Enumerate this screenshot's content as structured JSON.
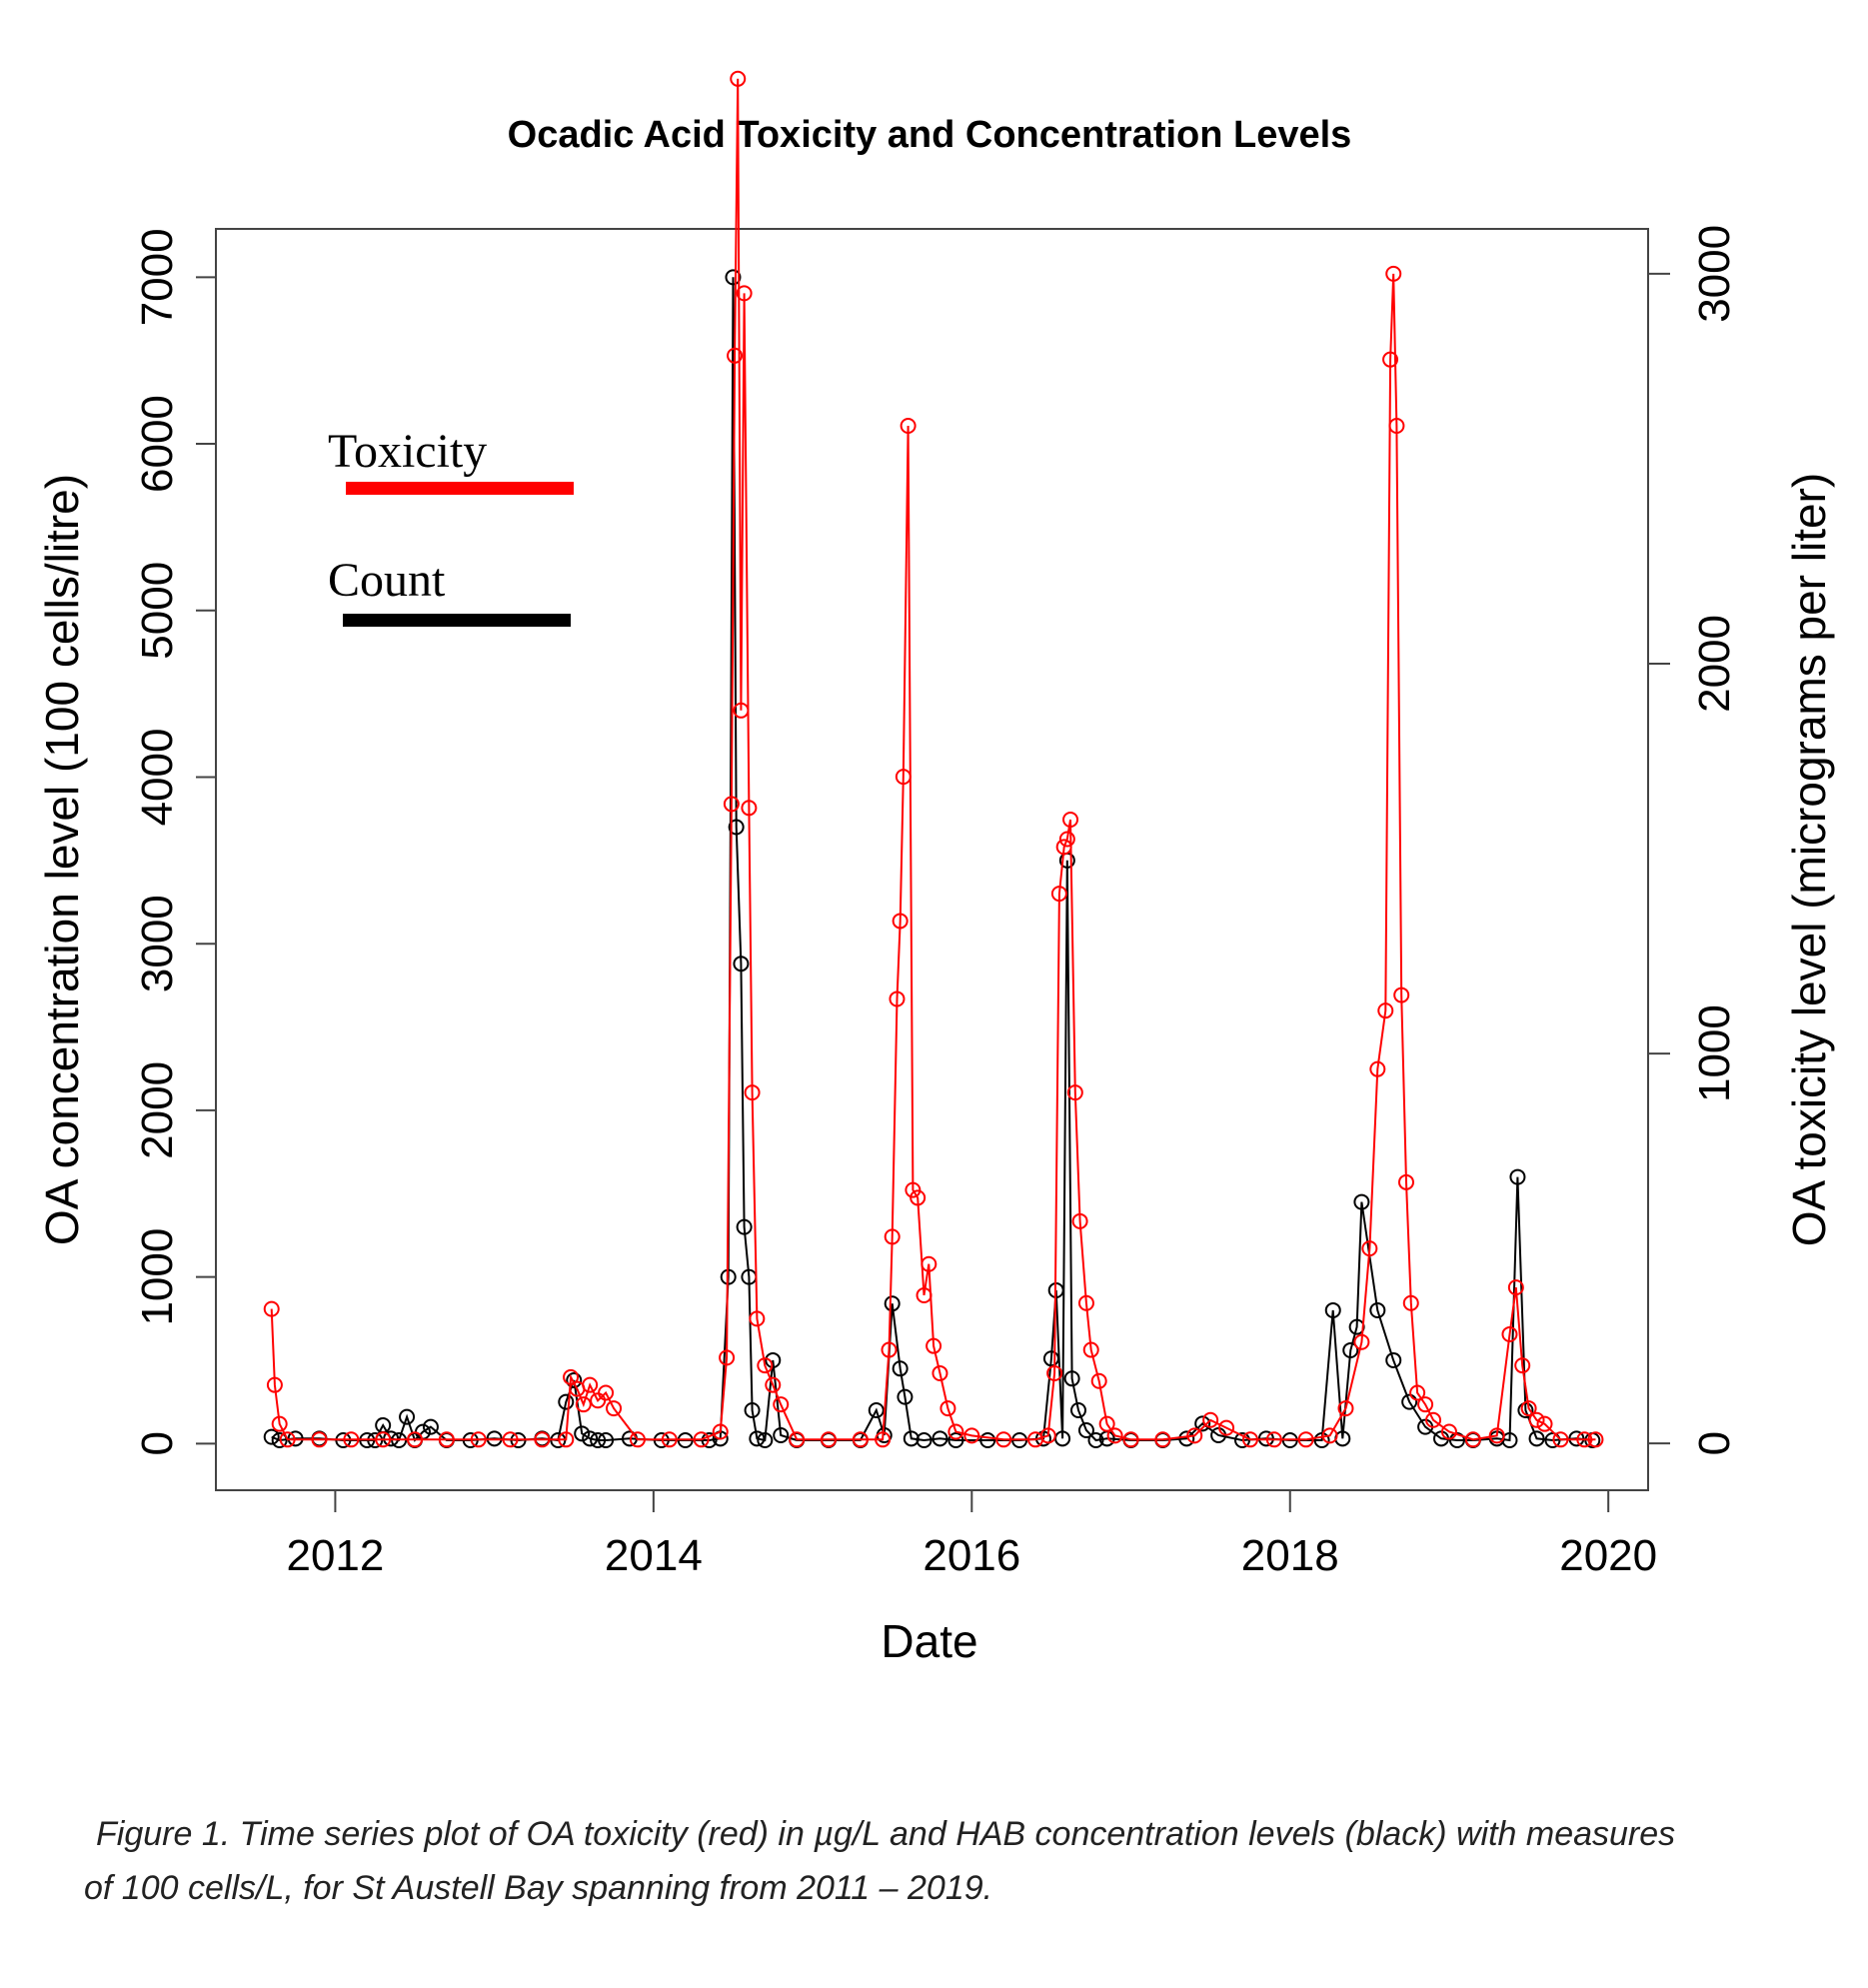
{
  "chart_data": {
    "type": "line",
    "title": "Ocadic Acid Toxicity and Concentration Levels",
    "xlabel": "Date",
    "ylabel": "OA concentration level (100 cells/litre)",
    "ylabel_right": "OA toxicity level (micrograms per liter)",
    "xlim": [
      2011.25,
      2020.25
    ],
    "ylim": [
      -280,
      7290
    ],
    "ylim_right": [
      -120,
      3115
    ],
    "x_ticks": [
      2012,
      2014,
      2016,
      2018,
      2020
    ],
    "x_tick_labels": [
      "2012",
      "2014",
      "2016",
      "2018",
      "2020"
    ],
    "y_ticks": [
      0,
      1000,
      2000,
      3000,
      4000,
      5000,
      6000,
      7000
    ],
    "y_tick_labels": [
      "0",
      "1000",
      "2000",
      "3000",
      "4000",
      "5000",
      "6000",
      "7000"
    ],
    "y_ticks_right": [
      0,
      1000,
      2000,
      3000
    ],
    "y_tick_labels_right": [
      "0",
      "1000",
      "2000",
      "3000"
    ],
    "grid": false,
    "legend": {
      "placement": "top-left",
      "entries": [
        {
          "label": "Toxicity",
          "color": "#ff0000"
        },
        {
          "label": "Count",
          "color": "#000000"
        }
      ]
    },
    "series": [
      {
        "name": "Count",
        "axis": "left",
        "color": "#000000",
        "x": [
          2011.6,
          2011.65,
          2011.75,
          2011.9,
          2012.05,
          2012.2,
          2012.25,
          2012.3,
          2012.35,
          2012.4,
          2012.45,
          2012.5,
          2012.55,
          2012.6,
          2012.7,
          2012.85,
          2013.0,
          2013.15,
          2013.3,
          2013.4,
          2013.45,
          2013.5,
          2013.55,
          2013.6,
          2013.65,
          2013.7,
          2013.85,
          2014.05,
          2014.2,
          2014.35,
          2014.42,
          2014.47,
          2014.5,
          2014.52,
          2014.55,
          2014.57,
          2014.6,
          2014.62,
          2014.65,
          2014.7,
          2014.75,
          2014.8,
          2014.9,
          2015.1,
          2015.3,
          2015.4,
          2015.45,
          2015.5,
          2015.55,
          2015.58,
          2015.62,
          2015.7,
          2015.8,
          2015.9,
          2016.1,
          2016.3,
          2016.45,
          2016.5,
          2016.53,
          2016.57,
          2016.6,
          2016.63,
          2016.67,
          2016.72,
          2016.78,
          2016.85,
          2017.0,
          2017.2,
          2017.35,
          2017.45,
          2017.55,
          2017.7,
          2017.85,
          2018.0,
          2018.2,
          2018.27,
          2018.33,
          2018.38,
          2018.42,
          2018.45,
          2018.55,
          2018.65,
          2018.75,
          2018.85,
          2018.95,
          2019.05,
          2019.15,
          2019.3,
          2019.38,
          2019.43,
          2019.48,
          2019.55,
          2019.65,
          2019.8,
          2019.9
        ],
        "values": [
          40,
          20,
          30,
          30,
          20,
          20,
          20,
          110,
          30,
          20,
          160,
          20,
          70,
          100,
          20,
          20,
          30,
          20,
          30,
          20,
          250,
          380,
          60,
          30,
          20,
          20,
          30,
          20,
          20,
          20,
          30,
          1000,
          7000,
          3700,
          2880,
          1300,
          1000,
          200,
          30,
          20,
          500,
          50,
          20,
          20,
          20,
          200,
          50,
          840,
          450,
          280,
          30,
          20,
          30,
          20,
          20,
          20,
          30,
          510,
          920,
          30,
          3500,
          390,
          200,
          80,
          20,
          30,
          20,
          20,
          30,
          120,
          50,
          20,
          30,
          20,
          20,
          800,
          30,
          560,
          700,
          1450,
          800,
          500,
          250,
          100,
          30,
          20,
          20,
          30,
          20,
          1600,
          200,
          30,
          20,
          30,
          20
        ],
        "marker": "open-circle"
      },
      {
        "name": "Toxicity",
        "axis": "right",
        "color": "#ff0000",
        "x": [
          2011.6,
          2011.62,
          2011.65,
          2011.7,
          2011.9,
          2012.1,
          2012.3,
          2012.5,
          2012.7,
          2012.9,
          2013.1,
          2013.3,
          2013.45,
          2013.48,
          2013.52,
          2013.56,
          2013.6,
          2013.65,
          2013.7,
          2013.75,
          2013.9,
          2014.1,
          2014.3,
          2014.42,
          2014.46,
          2014.49,
          2014.51,
          2014.53,
          2014.55,
          2014.57,
          2014.6,
          2014.62,
          2014.65,
          2014.7,
          2014.75,
          2014.8,
          2014.9,
          2015.1,
          2015.3,
          2015.44,
          2015.48,
          2015.5,
          2015.53,
          2015.55,
          2015.57,
          2015.6,
          2015.63,
          2015.66,
          2015.7,
          2015.73,
          2015.76,
          2015.8,
          2015.85,
          2015.9,
          2016.0,
          2016.2,
          2016.4,
          2016.48,
          2016.52,
          2016.55,
          2016.58,
          2016.6,
          2016.62,
          2016.65,
          2016.68,
          2016.72,
          2016.75,
          2016.8,
          2016.85,
          2016.9,
          2017.0,
          2017.2,
          2017.4,
          2017.5,
          2017.6,
          2017.75,
          2017.9,
          2018.1,
          2018.25,
          2018.35,
          2018.45,
          2018.5,
          2018.55,
          2018.6,
          2018.63,
          2018.65,
          2018.67,
          2018.7,
          2018.73,
          2018.76,
          2018.8,
          2018.85,
          2018.9,
          2019.0,
          2019.15,
          2019.3,
          2019.38,
          2019.42,
          2019.46,
          2019.5,
          2019.55,
          2019.6,
          2019.7,
          2019.85,
          2019.92
        ],
        "values": [
          345,
          150,
          50,
          10,
          10,
          10,
          10,
          10,
          10,
          10,
          10,
          10,
          10,
          170,
          140,
          100,
          150,
          110,
          130,
          90,
          10,
          10,
          10,
          30,
          220,
          1640,
          2790,
          3500,
          1880,
          2950,
          1630,
          900,
          320,
          200,
          150,
          100,
          10,
          10,
          10,
          10,
          240,
          530,
          1140,
          1340,
          1710,
          2610,
          650,
          630,
          380,
          460,
          250,
          180,
          90,
          30,
          20,
          10,
          10,
          20,
          180,
          1410,
          1530,
          1550,
          1600,
          900,
          570,
          360,
          240,
          160,
          50,
          20,
          10,
          10,
          20,
          60,
          40,
          10,
          10,
          10,
          20,
          90,
          260,
          500,
          960,
          1110,
          2780,
          3000,
          2610,
          1150,
          670,
          360,
          130,
          100,
          60,
          30,
          10,
          20,
          280,
          400,
          200,
          90,
          60,
          50,
          10,
          10,
          10
        ],
        "marker": "open-circle"
      }
    ]
  },
  "caption": {
    "line1": "Figure 1. Time series plot of OA toxicity (red) in µg/L and HAB concentration levels (black) with measures",
    "line2": "of 100 cells/L, for St Austell Bay spanning from 2011 – 2019."
  }
}
